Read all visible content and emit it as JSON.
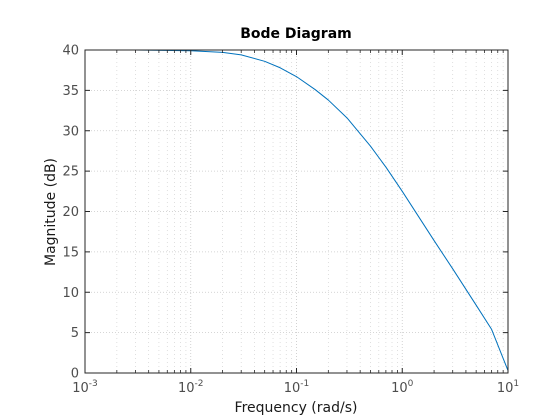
{
  "chart_data": {
    "type": "line",
    "title": "Bode Diagram",
    "xlabel": "Frequency  (rad/s)",
    "ylabel": "Magnitude (dB)",
    "x_scale": "log",
    "xlim": [
      0.001,
      10
    ],
    "ylim": [
      0,
      40
    ],
    "grid": true,
    "minor_grid": true,
    "x_ticks": [
      {
        "base": "10",
        "exp": "-3",
        "value": 0.001
      },
      {
        "base": "10",
        "exp": "-2",
        "value": 0.01
      },
      {
        "base": "10",
        "exp": "-1",
        "value": 0.1
      },
      {
        "base": "10",
        "exp": "0",
        "value": 1
      },
      {
        "base": "10",
        "exp": "1",
        "value": 10
      }
    ],
    "y_ticks": [
      "0",
      "5",
      "10",
      "15",
      "20",
      "25",
      "30",
      "35",
      "40"
    ],
    "series": [
      {
        "color": "#0072bd",
        "x": [
          0.001,
          0.003,
          0.01,
          0.02,
          0.03,
          0.05,
          0.07,
          0.1,
          0.15,
          0.2,
          0.3,
          0.5,
          0.7,
          1,
          2,
          3,
          5,
          7,
          10
        ],
        "y": [
          40,
          40,
          39.9,
          39.7,
          39.4,
          38.6,
          37.8,
          36.7,
          35.1,
          33.8,
          31.6,
          28.1,
          25.5,
          22.5,
          16.4,
          12.9,
          8.4,
          5.4,
          0.3
        ]
      }
    ]
  }
}
